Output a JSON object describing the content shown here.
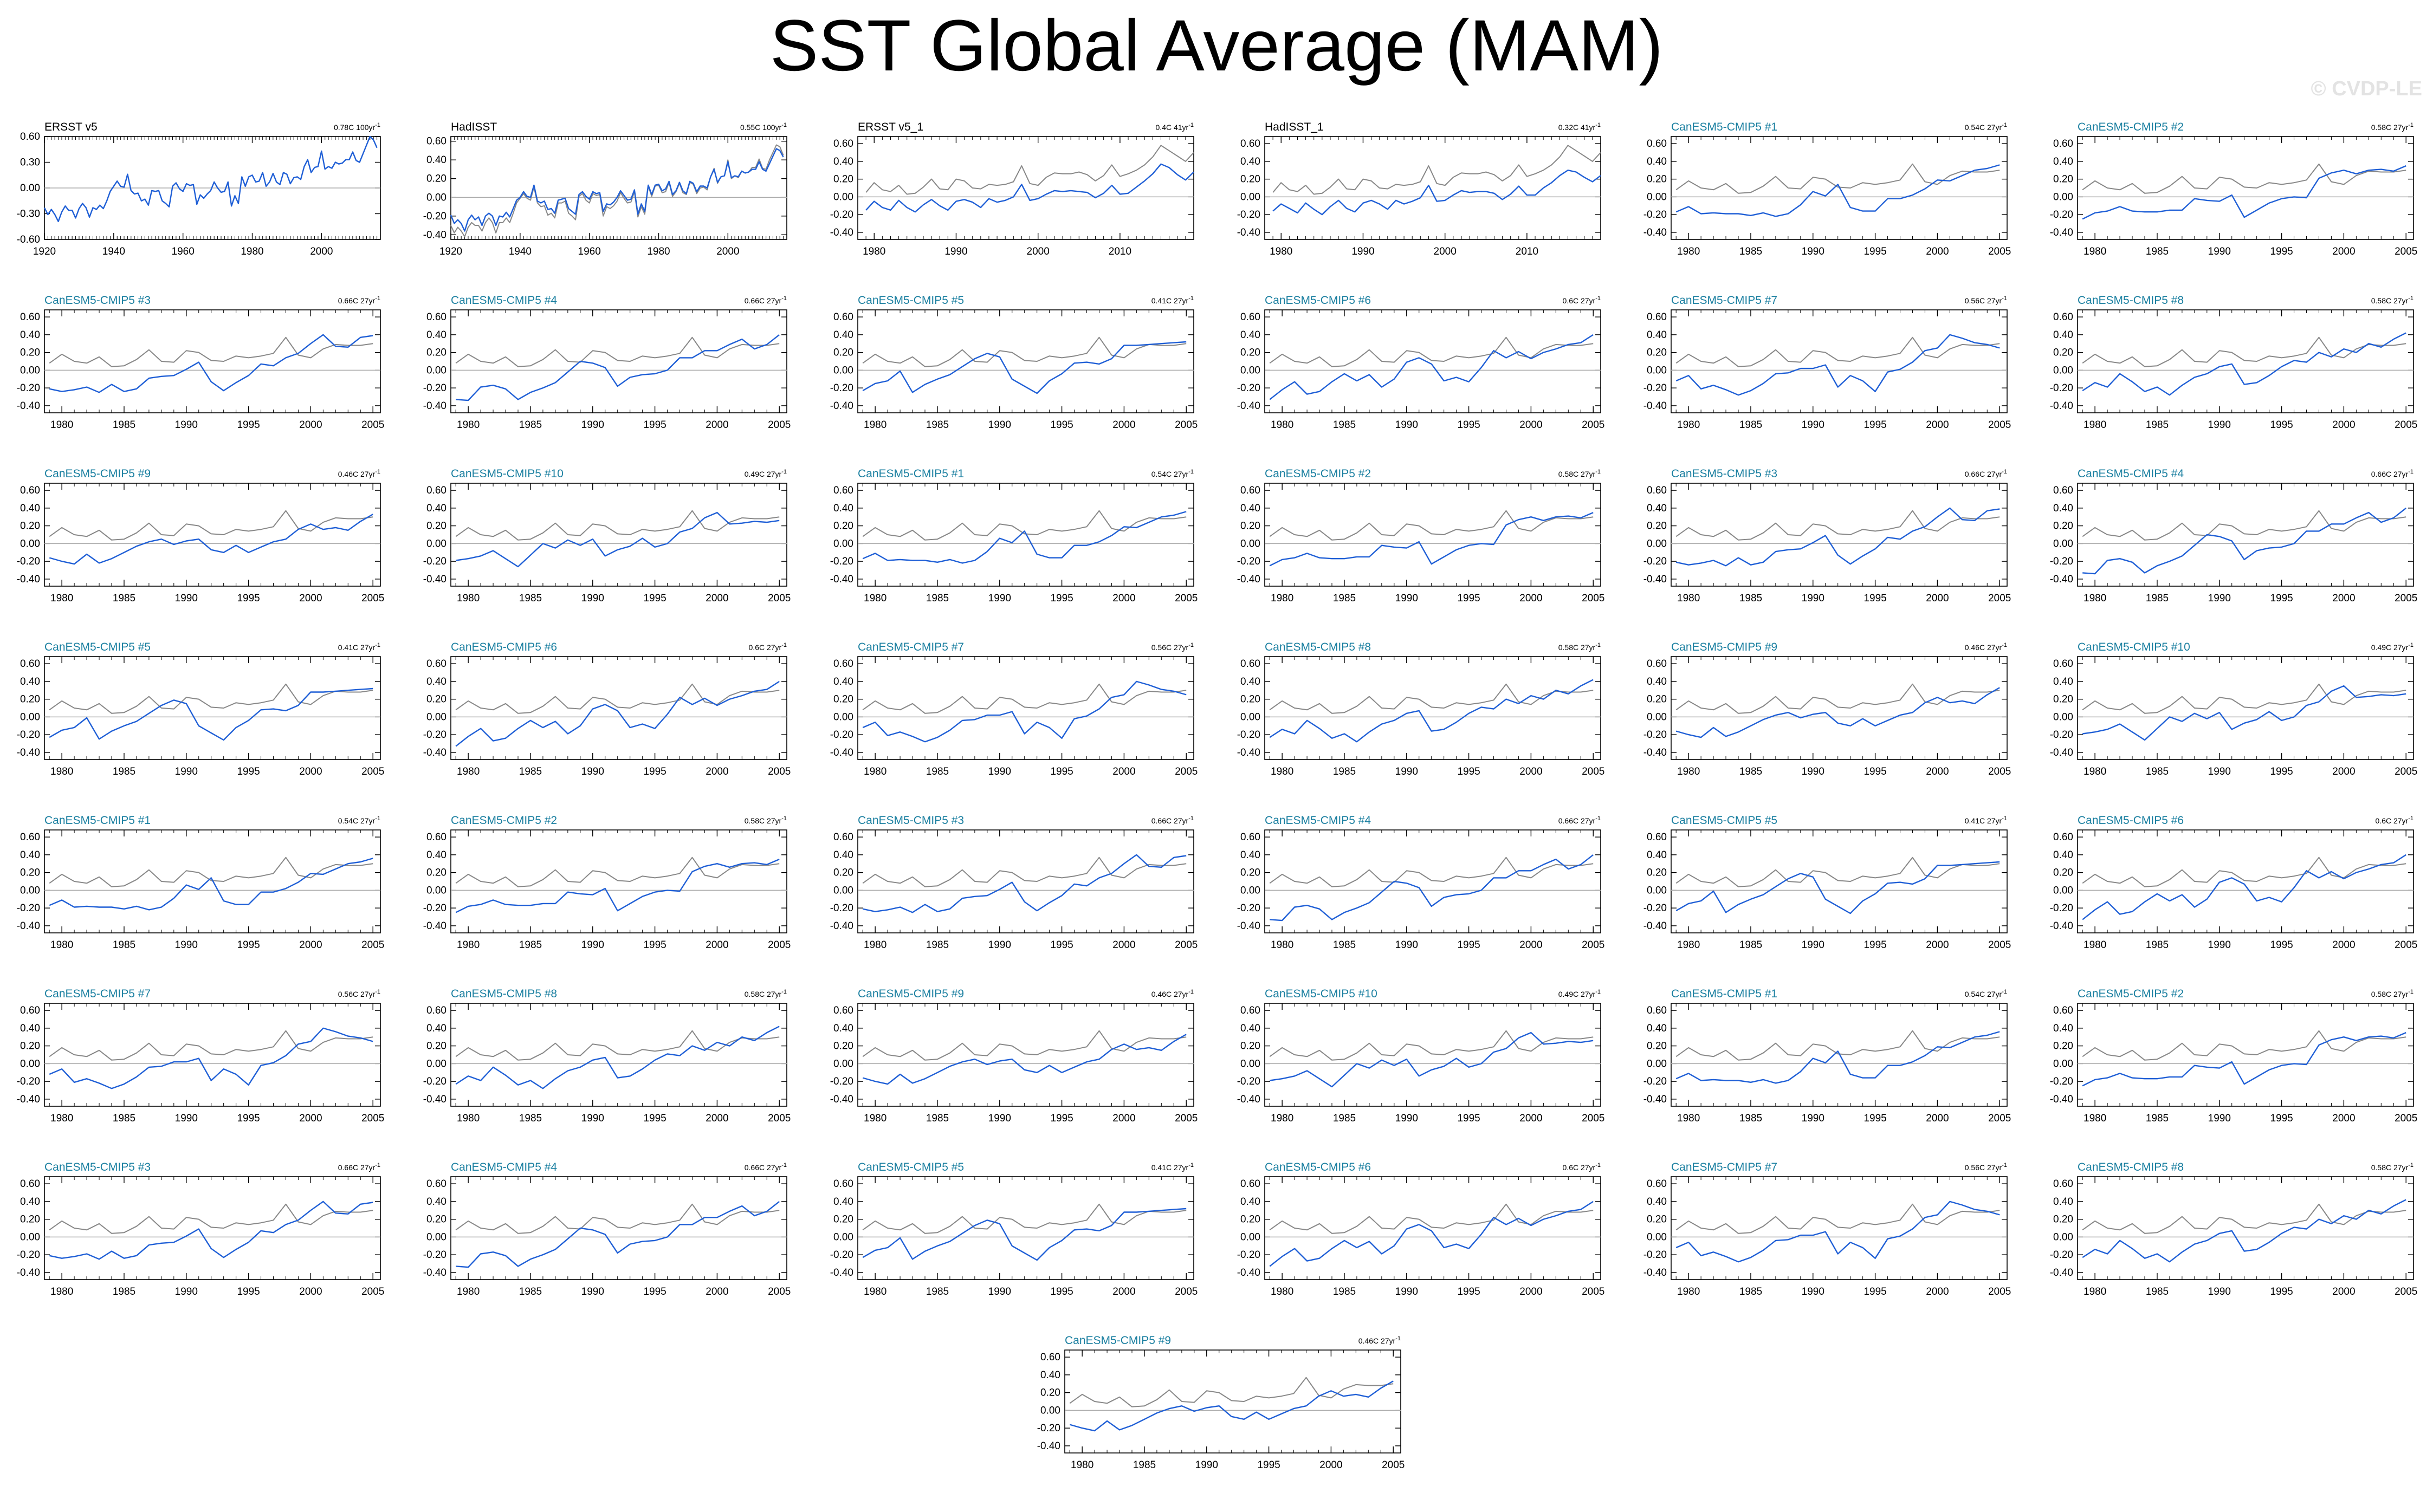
{
  "title": "SST Global Average (MAM)",
  "watermark": "© CVDP-LE",
  "colors": {
    "model": "#1f5fd6",
    "obs": "#888888",
    "model_title": "#1a7fa0",
    "obs_title": "#000000",
    "zero": "#aaaaaa"
  },
  "chart_data": {
    "type": "line",
    "ylim": [
      -0.6,
      0.7
    ],
    "grid": false,
    "obs_reference": "HadISST",
    "panels": [
      {
        "title": "ERSST v5",
        "trend": "0.78C 100yr",
        "kind": "obs",
        "period": "1920-2017",
        "xticks": [
          1920,
          1940,
          1960,
          1980,
          2000
        ],
        "yticks": [
          "0.60",
          "0.30",
          "0.00",
          "-0.30",
          "-0.60"
        ],
        "ylim": [
          -0.6,
          0.6
        ],
        "y": [
          -0.23,
          -0.31,
          -0.25,
          -0.31,
          -0.39,
          -0.28,
          -0.21,
          -0.26,
          -0.26,
          -0.35,
          -0.24,
          -0.18,
          -0.23,
          -0.34,
          -0.23,
          -0.25,
          -0.2,
          -0.24,
          -0.15,
          -0.04,
          0.02,
          0.08,
          0.02,
          0.01,
          0.16,
          -0.03,
          -0.07,
          -0.06,
          -0.15,
          -0.13,
          -0.2,
          -0.03,
          -0.04,
          -0.03,
          -0.15,
          -0.18,
          -0.22,
          0.02,
          0.06,
          -0.01,
          -0.04,
          0.05,
          0.03,
          0.04,
          -0.19,
          -0.08,
          -0.12,
          -0.07,
          -0.03,
          0.07,
          0.0,
          -0.05,
          -0.04,
          0.07,
          -0.21,
          -0.09,
          -0.18,
          0.13,
          0.02,
          0.13,
          0.15,
          0.07,
          0.08,
          0.18,
          0.02,
          0.07,
          0.17,
          0.07,
          0.04,
          0.18,
          0.16,
          0.05,
          0.12,
          0.13,
          0.1,
          0.25,
          0.33,
          0.18,
          0.24,
          0.25,
          0.43,
          0.22,
          0.25,
          0.23,
          0.3,
          0.28,
          0.29,
          0.33,
          0.33,
          0.42,
          0.32,
          0.3,
          0.4,
          0.5,
          0.6,
          0.56,
          0.47
        ]
      },
      {
        "title": "HadISST",
        "trend": "0.55C 100yr",
        "kind": "obs2",
        "period": "1920-2017",
        "xticks": [
          1920,
          1940,
          1960,
          1980,
          2000
        ],
        "yticks": [
          "0.60",
          "0.40",
          "0.20",
          "0.00",
          "-0.20",
          "-0.40"
        ],
        "ylim": [
          -0.45,
          0.65
        ],
        "y": [
          -0.19,
          -0.28,
          -0.24,
          -0.28,
          -0.36,
          -0.24,
          -0.19,
          -0.24,
          -0.21,
          -0.3,
          -0.2,
          -0.17,
          -0.2,
          -0.3,
          -0.2,
          -0.21,
          -0.16,
          -0.21,
          -0.12,
          -0.03,
          0.0,
          0.06,
          0.01,
          0.0,
          0.13,
          -0.04,
          -0.06,
          -0.04,
          -0.13,
          -0.12,
          -0.17,
          -0.03,
          -0.02,
          -0.01,
          -0.12,
          -0.15,
          -0.18,
          0.03,
          0.06,
          0.01,
          -0.02,
          0.06,
          0.04,
          0.05,
          -0.15,
          -0.07,
          -0.08,
          -0.05,
          0.0,
          0.07,
          0.02,
          -0.03,
          -0.02,
          0.08,
          -0.18,
          -0.07,
          -0.15,
          0.13,
          0.03,
          0.13,
          0.14,
          0.07,
          0.09,
          0.17,
          0.03,
          0.07,
          0.16,
          0.07,
          0.04,
          0.17,
          0.15,
          0.06,
          0.12,
          0.12,
          0.1,
          0.22,
          0.3,
          0.16,
          0.22,
          0.23,
          0.38,
          0.21,
          0.23,
          0.22,
          0.28,
          0.26,
          0.27,
          0.3,
          0.3,
          0.38,
          0.3,
          0.28,
          0.36,
          0.44,
          0.52,
          0.5,
          0.43
        ],
        "y2": [
          -0.3,
          -0.38,
          -0.32,
          -0.36,
          -0.42,
          -0.32,
          -0.27,
          -0.3,
          -0.3,
          -0.36,
          -0.27,
          -0.22,
          -0.27,
          -0.38,
          -0.27,
          -0.27,
          -0.22,
          -0.27,
          -0.17,
          -0.06,
          -0.01,
          0.04,
          -0.01,
          -0.03,
          0.11,
          -0.06,
          -0.1,
          -0.09,
          -0.19,
          -0.17,
          -0.22,
          -0.06,
          -0.06,
          -0.04,
          -0.17,
          -0.2,
          -0.24,
          0.01,
          0.04,
          -0.03,
          -0.06,
          0.04,
          0.02,
          0.03,
          -0.2,
          -0.1,
          -0.12,
          -0.09,
          -0.04,
          0.05,
          -0.01,
          -0.06,
          -0.05,
          0.06,
          -0.21,
          -0.1,
          -0.18,
          0.12,
          0.01,
          0.12,
          0.13,
          0.05,
          0.06,
          0.16,
          0.01,
          0.06,
          0.15,
          0.05,
          0.03,
          0.16,
          0.14,
          0.04,
          0.1,
          0.11,
          0.08,
          0.22,
          0.31,
          0.15,
          0.22,
          0.23,
          0.4,
          0.2,
          0.23,
          0.21,
          0.28,
          0.26,
          0.27,
          0.32,
          0.32,
          0.41,
          0.31,
          0.3,
          0.4,
          0.48,
          0.56,
          0.54,
          0.45
        ]
      },
      {
        "title": "ERSST v5_1",
        "trend": "0.4C 41yr",
        "kind": "obs3",
        "period": "1979-2019",
        "xticks": [
          1980,
          2000,
          2010
        ],
        "xticks_all": [
          1980,
          1990,
          2000,
          2010
        ],
        "yticks": [
          "0.60",
          "0.40",
          "0.20",
          "0.00",
          "-0.20",
          "-0.40"
        ],
        "ylim": [
          -0.48,
          0.68
        ],
        "y": [
          -0.15,
          -0.05,
          -0.12,
          -0.15,
          -0.04,
          -0.12,
          -0.17,
          -0.09,
          -0.03,
          -0.1,
          -0.15,
          -0.05,
          -0.03,
          -0.06,
          -0.12,
          -0.02,
          -0.06,
          -0.04,
          0.0,
          0.14,
          -0.04,
          -0.02,
          0.03,
          0.07,
          0.06,
          0.07,
          0.06,
          0.05,
          -0.01,
          0.04,
          0.13,
          0.03,
          0.04,
          0.11,
          0.18,
          0.26,
          0.37,
          0.33,
          0.25,
          0.19,
          0.28
        ]
      },
      {
        "title": "HadISST_1",
        "trend": "0.32C 41yr",
        "kind": "obs3",
        "period": "1979-2019",
        "xticks": [
          1980,
          1990,
          2000,
          2010
        ],
        "yticks": [
          "0.60",
          "0.40",
          "0.20",
          "0.00",
          "-0.20",
          "-0.40"
        ],
        "ylim": [
          -0.48,
          0.68
        ],
        "y": [
          -0.16,
          -0.08,
          -0.13,
          -0.18,
          -0.07,
          -0.14,
          -0.2,
          -0.11,
          -0.04,
          -0.13,
          -0.17,
          -0.07,
          -0.04,
          -0.08,
          -0.14,
          -0.04,
          -0.08,
          -0.05,
          -0.01,
          0.13,
          -0.05,
          -0.04,
          0.02,
          0.07,
          0.05,
          0.06,
          0.06,
          0.04,
          -0.03,
          0.03,
          0.12,
          0.02,
          0.02,
          0.1,
          0.16,
          0.24,
          0.3,
          0.28,
          0.22,
          0.17,
          0.24
        ]
      }
    ],
    "model_panels": [
      [
        "CanESM5-CMIP5 #1",
        "0.54C 27yr"
      ],
      [
        "CanESM5-CMIP5 #2",
        "0.58C 27yr"
      ],
      [
        "CanESM5-CMIP5 #3",
        "0.66C 27yr"
      ],
      [
        "CanESM5-CMIP5 #4",
        "0.66C 27yr"
      ],
      [
        "CanESM5-CMIP5 #5",
        "0.41C 27yr"
      ],
      [
        "CanESM5-CMIP5 #6",
        "0.6C 27yr"
      ],
      [
        "CanESM5-CMIP5 #7",
        "0.56C 27yr"
      ],
      [
        "CanESM5-CMIP5 #8",
        "0.58C 27yr"
      ],
      [
        "CanESM5-CMIP5 #9",
        "0.46C 27yr"
      ],
      [
        "CanESM5-CMIP5 #10",
        "0.49C 27yr"
      ],
      [
        "CanESM5-CMIP5 #1",
        "0.54C 27yr"
      ],
      [
        "CanESM5-CMIP5 #2",
        "0.58C 27yr"
      ],
      [
        "CanESM5-CMIP5 #3",
        "0.66C 27yr"
      ],
      [
        "CanESM5-CMIP5 #4",
        "0.66C 27yr"
      ],
      [
        "CanESM5-CMIP5 #5",
        "0.41C 27yr"
      ],
      [
        "CanESM5-CMIP5 #6",
        "0.6C 27yr"
      ],
      [
        "CanESM5-CMIP5 #7",
        "0.56C 27yr"
      ],
      [
        "CanESM5-CMIP5 #8",
        "0.58C 27yr"
      ],
      [
        "CanESM5-CMIP5 #9",
        "0.46C 27yr"
      ],
      [
        "CanESM5-CMIP5 #10",
        "0.49C 27yr"
      ],
      [
        "CanESM5-CMIP5 #1",
        "0.54C 27yr"
      ],
      [
        "CanESM5-CMIP5 #2",
        "0.58C 27yr"
      ],
      [
        "CanESM5-CMIP5 #3",
        "0.66C 27yr"
      ],
      [
        "CanESM5-CMIP5 #4",
        "0.66C 27yr"
      ],
      [
        "CanESM5-CMIP5 #5",
        "0.41C 27yr"
      ],
      [
        "CanESM5-CMIP5 #6",
        "0.6C 27yr"
      ],
      [
        "CanESM5-CMIP5 #7",
        "0.56C 27yr"
      ],
      [
        "CanESM5-CMIP5 #8",
        "0.58C 27yr"
      ],
      [
        "CanESM5-CMIP5 #9",
        "0.46C 27yr"
      ],
      [
        "CanESM5-CMIP5 #10",
        "0.49C 27yr"
      ],
      [
        "CanESM5-CMIP5 #1",
        "0.54C 27yr"
      ],
      [
        "CanESM5-CMIP5 #2",
        "0.58C 27yr"
      ],
      [
        "CanESM5-CMIP5 #3",
        "0.66C 27yr"
      ],
      [
        "CanESM5-CMIP5 #4",
        "0.66C 27yr"
      ],
      [
        "CanESM5-CMIP5 #5",
        "0.41C 27yr"
      ],
      [
        "CanESM5-CMIP5 #6",
        "0.6C 27yr"
      ],
      [
        "CanESM5-CMIP5 #7",
        "0.56C 27yr"
      ],
      [
        "CanESM5-CMIP5 #8",
        "0.58C 27yr"
      ],
      [
        "CanESM5-CMIP5 #9",
        "0.46C 27yr"
      ]
    ],
    "model_period": "1979-2005",
    "model_xticks": [
      1980,
      1985,
      1990,
      1995,
      2000,
      2005
    ],
    "model_yticks": [
      "0.60",
      "0.40",
      "0.20",
      "0.00",
      "-0.20",
      "-0.40"
    ],
    "model_ylim": [
      -0.48,
      0.68
    ],
    "obs_overlay_1979_2005": [
      0.08,
      0.18,
      0.1,
      0.08,
      0.15,
      0.04,
      0.05,
      0.12,
      0.23,
      0.1,
      0.09,
      0.22,
      0.2,
      0.11,
      0.1,
      0.16,
      0.14,
      0.16,
      0.19,
      0.37,
      0.17,
      0.14,
      0.24,
      0.29,
      0.28,
      0.28,
      0.3
    ],
    "model_series": {
      "#1": [
        -0.17,
        -0.11,
        -0.19,
        -0.18,
        -0.19,
        -0.19,
        -0.21,
        -0.18,
        -0.22,
        -0.19,
        -0.09,
        0.06,
        0.01,
        0.14,
        -0.12,
        -0.16,
        -0.16,
        -0.02,
        -0.02,
        0.02,
        0.09,
        0.19,
        0.18,
        0.24,
        0.3,
        0.32,
        0.36
      ],
      "#2": [
        -0.25,
        -0.18,
        -0.16,
        -0.11,
        -0.16,
        -0.17,
        -0.17,
        -0.15,
        -0.15,
        -0.02,
        -0.04,
        -0.05,
        0.02,
        -0.23,
        -0.15,
        -0.07,
        -0.02,
        0.0,
        -0.01,
        0.21,
        0.27,
        0.3,
        0.26,
        0.3,
        0.31,
        0.29,
        0.35
      ],
      "#3": [
        -0.21,
        -0.24,
        -0.22,
        -0.19,
        -0.25,
        -0.16,
        -0.24,
        -0.21,
        -0.09,
        -0.07,
        -0.06,
        0.01,
        0.09,
        -0.13,
        -0.23,
        -0.14,
        -0.06,
        0.07,
        0.05,
        0.14,
        0.19,
        0.3,
        0.4,
        0.27,
        0.26,
        0.37,
        0.39
      ],
      "#4": [
        -0.33,
        -0.34,
        -0.19,
        -0.17,
        -0.21,
        -0.33,
        -0.25,
        -0.2,
        -0.14,
        -0.02,
        0.1,
        0.08,
        0.03,
        -0.18,
        -0.08,
        -0.05,
        -0.04,
        0.0,
        0.14,
        0.14,
        0.22,
        0.22,
        0.29,
        0.35,
        0.24,
        0.29,
        0.4
      ],
      "#5": [
        -0.23,
        -0.15,
        -0.12,
        -0.01,
        -0.25,
        -0.16,
        -0.1,
        -0.05,
        0.04,
        0.13,
        0.19,
        0.15,
        -0.1,
        -0.18,
        -0.26,
        -0.12,
        -0.04,
        0.08,
        0.09,
        0.07,
        0.13,
        0.28,
        0.28,
        0.29,
        0.3,
        0.31,
        0.32
      ],
      "#6": [
        -0.33,
        -0.22,
        -0.13,
        -0.27,
        -0.24,
        -0.13,
        -0.04,
        -0.12,
        -0.05,
        -0.19,
        -0.1,
        0.09,
        0.14,
        0.07,
        -0.12,
        -0.08,
        -0.13,
        0.03,
        0.22,
        0.14,
        0.21,
        0.13,
        0.2,
        0.24,
        0.29,
        0.31,
        0.4
      ],
      "#7": [
        -0.12,
        -0.06,
        -0.21,
        -0.17,
        -0.22,
        -0.28,
        -0.23,
        -0.15,
        -0.04,
        -0.03,
        0.02,
        0.02,
        0.06,
        -0.19,
        -0.06,
        -0.12,
        -0.24,
        -0.02,
        0.01,
        0.09,
        0.22,
        0.25,
        0.4,
        0.36,
        0.31,
        0.29,
        0.25
      ],
      "#8": [
        -0.23,
        -0.14,
        -0.19,
        -0.04,
        -0.13,
        -0.24,
        -0.19,
        -0.28,
        -0.17,
        -0.08,
        -0.04,
        0.04,
        0.07,
        -0.16,
        -0.14,
        -0.06,
        0.04,
        0.11,
        0.09,
        0.2,
        0.15,
        0.24,
        0.2,
        0.3,
        0.26,
        0.35,
        0.42
      ],
      "#9": [
        -0.16,
        -0.2,
        -0.23,
        -0.12,
        -0.22,
        -0.17,
        -0.1,
        -0.03,
        0.02,
        0.05,
        -0.01,
        0.03,
        0.05,
        -0.07,
        -0.1,
        -0.02,
        -0.1,
        -0.04,
        0.02,
        0.05,
        0.16,
        0.22,
        0.16,
        0.18,
        0.15,
        0.25,
        0.33
      ],
      "#10": [
        -0.19,
        -0.17,
        -0.14,
        -0.08,
        -0.17,
        -0.26,
        -0.13,
        0.0,
        -0.05,
        0.04,
        -0.02,
        0.05,
        -0.14,
        -0.07,
        -0.03,
        0.06,
        -0.04,
        0.0,
        0.13,
        0.17,
        0.29,
        0.35,
        0.22,
        0.23,
        0.25,
        0.24,
        0.26
      ]
    }
  }
}
